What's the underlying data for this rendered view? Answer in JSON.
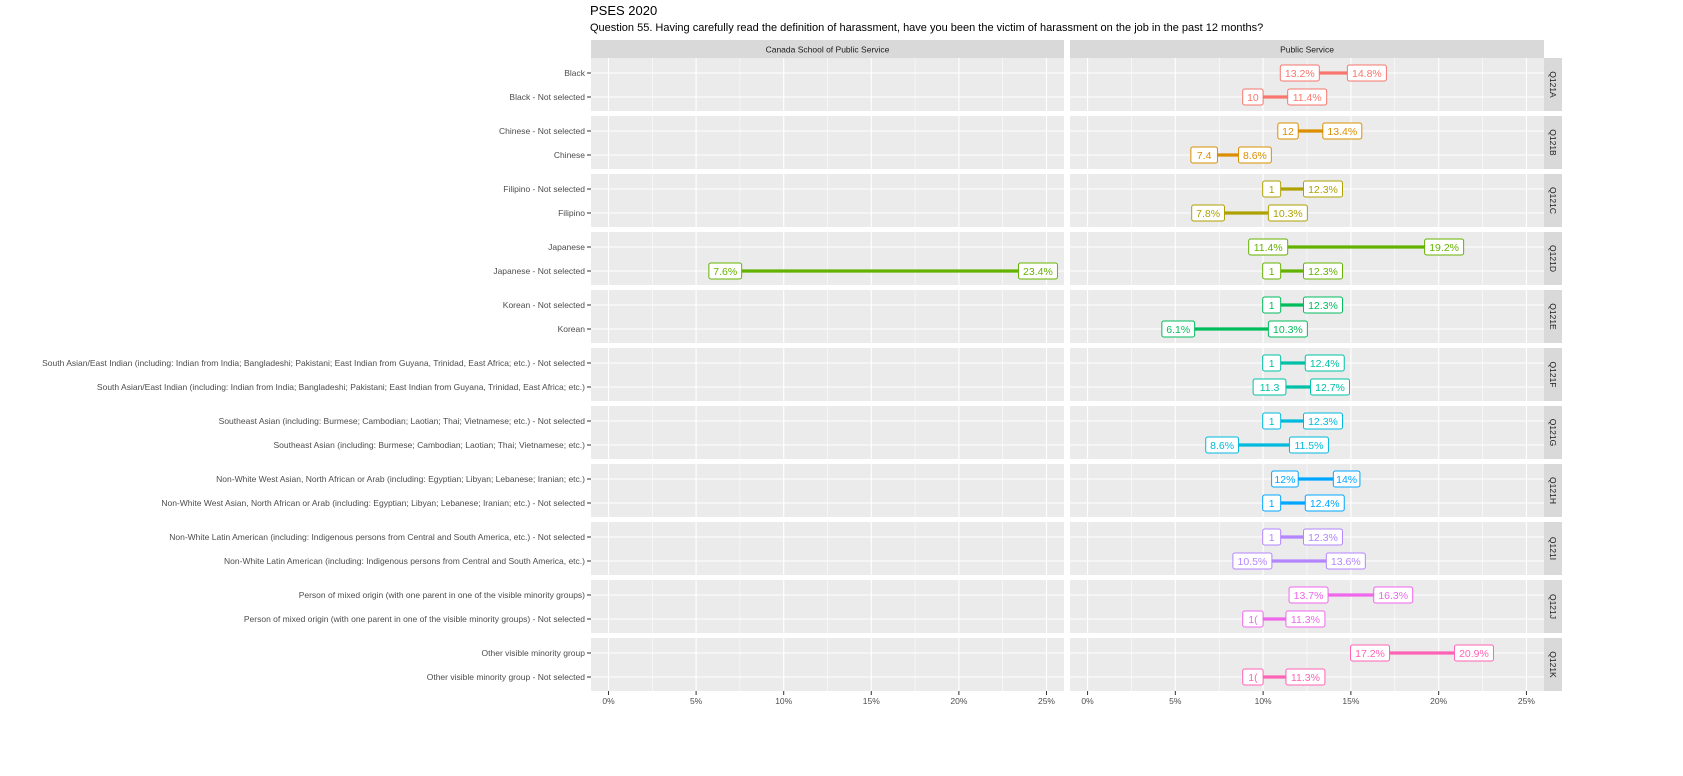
{
  "title": "PSES 2020",
  "subtitle": "Question 55. Having carefully read the definition of harassment, have you been the victim of harassment on the job in the past 12 months?",
  "chart_data": {
    "type": "dumbbell",
    "title": "PSES 2020",
    "subtitle": "Question 55. Having carefully read the definition of harassment, have you been the victim of harassment on the job in the past 12 months?",
    "panels": [
      "Canada School of Public Service",
      "Public Service"
    ],
    "xlim": [
      -1,
      26
    ],
    "xticks": [
      "0%",
      "5%",
      "10%",
      "15%",
      "20%",
      "25%"
    ],
    "tick_values": [
      0,
      5,
      10,
      15,
      20,
      25
    ],
    "grid": true,
    "groups": [
      {
        "id": "Q121A",
        "color": "#F8766D",
        "rows": [
          {
            "label": "Black",
            "csps": null,
            "ps": [
              13.2,
              14.8
            ],
            "ps_labels": [
              "13.2%",
              "14.8%"
            ]
          },
          {
            "label": "Black - Not selected",
            "csps": null,
            "ps": [
              10.0,
              11.4
            ],
            "ps_labels": [
              "10",
              "11.4%"
            ]
          }
        ]
      },
      {
        "id": "Q121B",
        "color": "#DB8E00",
        "rows": [
          {
            "label": "Chinese - Not selected",
            "csps": null,
            "ps": [
              12.0,
              13.4
            ],
            "ps_labels": [
              "12",
              "13.4%"
            ]
          },
          {
            "label": "Chinese",
            "csps": null,
            "ps": [
              7.4,
              8.6
            ],
            "ps_labels": [
              "7.4",
              "8.6%"
            ]
          }
        ]
      },
      {
        "id": "Q121C",
        "color": "#AEA200",
        "rows": [
          {
            "label": "Filipino - Not selected",
            "csps": null,
            "ps": [
              11.0,
              12.3
            ],
            "ps_labels": [
              "1",
              "12.3%"
            ]
          },
          {
            "label": "Filipino",
            "csps": null,
            "ps": [
              7.8,
              10.3
            ],
            "ps_labels": [
              "7.8%",
              "10.3%"
            ]
          }
        ]
      },
      {
        "id": "Q121D",
        "color": "#64B200",
        "rows": [
          {
            "label": "Japanese",
            "csps": null,
            "ps": [
              11.4,
              19.2
            ],
            "ps_labels": [
              "11.4%",
              "19.2%"
            ]
          },
          {
            "label": "Japanese - Not selected",
            "csps": [
              7.6,
              23.4
            ],
            "csps_labels": [
              "7.6%",
              "23.4%"
            ],
            "ps": [
              11.0,
              12.3
            ],
            "ps_labels": [
              "1",
              "12.3%"
            ]
          }
        ]
      },
      {
        "id": "Q121E",
        "color": "#00BD5C",
        "rows": [
          {
            "label": "Korean - Not selected",
            "csps": null,
            "ps": [
              11.0,
              12.3
            ],
            "ps_labels": [
              "1",
              "12.3%"
            ]
          },
          {
            "label": "Korean",
            "csps": null,
            "ps": [
              6.1,
              10.3
            ],
            "ps_labels": [
              "6.1%",
              "10.3%"
            ]
          }
        ]
      },
      {
        "id": "Q121F",
        "color": "#00C1A7",
        "rows": [
          {
            "label": "South Asian/East Indian (including: Indian from India; Bangladeshi; Pakistani; East Indian from Guyana, Trinidad, East Africa; etc.) - Not selected",
            "csps": null,
            "ps": [
              11.0,
              12.4
            ],
            "ps_labels": [
              "1",
              "12.4%"
            ]
          },
          {
            "label": "South Asian/East Indian (including: Indian from India; Bangladeshi; Pakistani; East Indian from Guyana, Trinidad, East Africa; etc.)",
            "csps": null,
            "ps": [
              11.3,
              12.7
            ],
            "ps_labels": [
              "11.3",
              "12.7%"
            ]
          }
        ]
      },
      {
        "id": "Q121G",
        "color": "#00BADE",
        "rows": [
          {
            "label": "Southeast Asian (including: Burmese; Cambodian; Laotian; Thai; Vietnamese; etc.) - Not selected",
            "csps": null,
            "ps": [
              11.0,
              12.3
            ],
            "ps_labels": [
              "1",
              "12.3%"
            ]
          },
          {
            "label": "Southeast Asian (including: Burmese; Cambodian; Laotian; Thai; Vietnamese; etc.)",
            "csps": null,
            "ps": [
              8.6,
              11.5
            ],
            "ps_labels": [
              "8.6%",
              "11.5%"
            ]
          }
        ]
      },
      {
        "id": "Q121H",
        "color": "#00A6FF",
        "rows": [
          {
            "label": "Non-White West Asian, North African or Arab (including: Egyptian; Libyan; Lebanese; Iranian; etc.)",
            "csps": null,
            "ps": [
              12.0,
              14.0
            ],
            "ps_labels": [
              "12%",
              "14%"
            ]
          },
          {
            "label": "Non-White West Asian, North African or Arab (including: Egyptian; Libyan; Lebanese; Iranian; etc.) - Not selected",
            "csps": null,
            "ps": [
              11.0,
              12.4
            ],
            "ps_labels": [
              "1",
              "12.4%"
            ]
          }
        ]
      },
      {
        "id": "Q121I",
        "color": "#B385FF",
        "rows": [
          {
            "label": "Non-White Latin American (including: Indigenous persons from Central and South America, etc.) - Not selected",
            "csps": null,
            "ps": [
              11.0,
              12.3
            ],
            "ps_labels": [
              "1",
              "12.3%"
            ]
          },
          {
            "label": "Non-White Latin American (including: Indigenous persons from Central and South America, etc.)",
            "csps": null,
            "ps": [
              10.5,
              13.6
            ],
            "ps_labels": [
              "10.5%",
              "13.6%"
            ]
          }
        ]
      },
      {
        "id": "Q121J",
        "color": "#EF67EB",
        "rows": [
          {
            "label": "Person of mixed origin (with one parent in one of the visible minority groups)",
            "csps": null,
            "ps": [
              13.7,
              16.3
            ],
            "ps_labels": [
              "13.7%",
              "16.3%"
            ]
          },
          {
            "label": "Person of mixed origin (with one parent in one of the visible minority groups) - Not selected",
            "csps": null,
            "ps": [
              10.0,
              11.3
            ],
            "ps_labels": [
              "1(",
              "11.3%"
            ]
          }
        ]
      },
      {
        "id": "Q121K",
        "color": "#FF63B6",
        "rows": [
          {
            "label": "Other visible minority group",
            "csps": null,
            "ps": [
              17.2,
              20.9
            ],
            "ps_labels": [
              "17.2%",
              "20.9%"
            ]
          },
          {
            "label": "Other visible minority group - Not selected",
            "csps": null,
            "ps": [
              10.0,
              11.3
            ],
            "ps_labels": [
              "1(",
              "11.3%"
            ]
          }
        ]
      }
    ]
  }
}
